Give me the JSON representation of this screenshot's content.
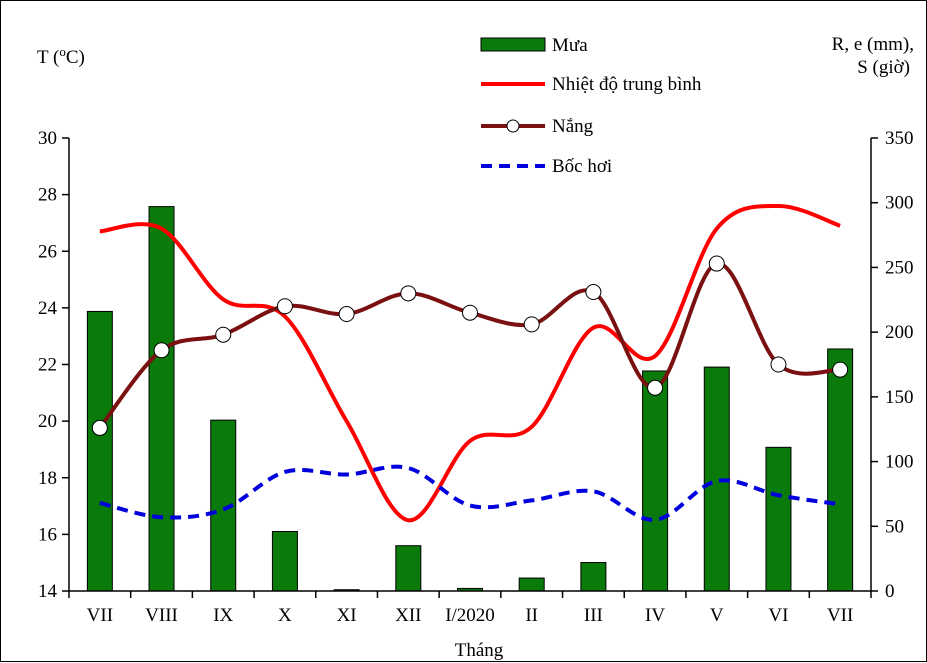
{
  "chart_data": {
    "type": "bar+line",
    "categories": [
      "VII",
      "VIII",
      "IX",
      "X",
      "XI",
      "XII",
      "I/2020",
      "II",
      "III",
      "IV",
      "V",
      "VI",
      "VII"
    ],
    "xlabel": "Tháng",
    "ylabel_left": "T (",
    "ylabel_left_sup": "o",
    "ylabel_left_end": "C)",
    "ylabel_right_line1": "R, e (mm),",
    "ylabel_right_line2": "S (giờ)",
    "y_left": {
      "min": 14,
      "max": 30,
      "ticks": [
        "14",
        "16",
        "18",
        "20",
        "22",
        "24",
        "26",
        "28",
        "30"
      ]
    },
    "y_right": {
      "min": 0,
      "max": 350,
      "ticks": [
        "0",
        "50",
        "100",
        "150",
        "200",
        "250",
        "300",
        "350"
      ]
    },
    "series": [
      {
        "name": "Mưa",
        "kind": "bar",
        "axis": "right",
        "color": "#0a7a0a",
        "values": [
          216,
          297,
          132,
          46,
          1,
          35,
          2,
          10,
          22,
          170,
          173,
          111,
          187
        ]
      },
      {
        "name": "Nhiệt độ trung bình",
        "kind": "line",
        "axis": "left",
        "color": "#ff0000",
        "values": [
          26.7,
          26.8,
          24.3,
          23.7,
          20.0,
          16.5,
          19.3,
          19.8,
          23.3,
          22.3,
          26.8,
          27.6,
          26.9
        ]
      },
      {
        "name": "Nắng",
        "kind": "line-marker",
        "axis": "right",
        "color": "#7b1010",
        "values": [
          126,
          186,
          198,
          220,
          214,
          230,
          215,
          206,
          231,
          157,
          253,
          175,
          171
        ]
      },
      {
        "name": "Bốc hơi",
        "kind": "dashed-line",
        "axis": "right",
        "color": "#0000dd",
        "values": [
          68,
          57,
          63,
          92,
          90,
          95,
          66,
          70,
          77,
          55,
          85,
          74,
          67
        ]
      }
    ],
    "legend_position": "top-center",
    "grid": false
  }
}
